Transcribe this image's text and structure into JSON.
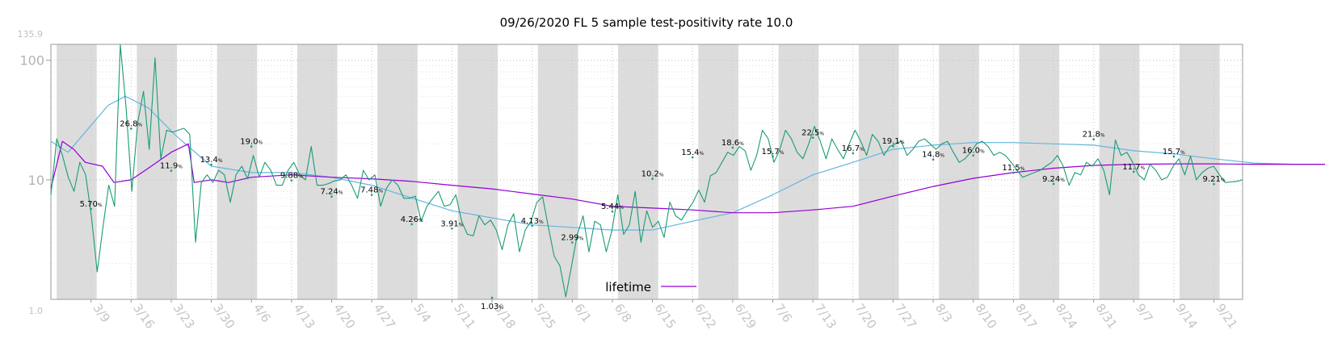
{
  "chart_data": {
    "type": "line",
    "title": "09/26/2020 FL 5 sample test-positivity rate 10.0",
    "yscale": "log",
    "ylim": [
      1.0,
      135.9
    ],
    "y_range_labels": {
      "min": "1.0",
      "max": "135.9"
    },
    "y_ticks": [
      {
        "value": 10,
        "label": "10"
      },
      {
        "value": 100,
        "label": "100"
      }
    ],
    "x_start": "2020-03-02",
    "x_end": "2020-09-26",
    "x_ticks": [
      "3/9",
      "3/16",
      "3/23",
      "3/30",
      "4/6",
      "4/13",
      "4/20",
      "4/27",
      "5/4",
      "5/11",
      "5/18",
      "5/25",
      "6/1",
      "6/8",
      "6/15",
      "6/22",
      "6/29",
      "7/6",
      "7/13",
      "7/20",
      "7/27",
      "8/3",
      "8/10",
      "8/17",
      "8/24",
      "8/31",
      "9/7",
      "9/14",
      "9/21"
    ],
    "shaded_weeks": [
      "3/3",
      "3/17",
      "3/31",
      "4/14",
      "4/28",
      "5/12",
      "5/26",
      "6/9",
      "6/23",
      "7/7",
      "7/21",
      "8/4",
      "8/18",
      "9/1",
      "9/15"
    ],
    "grid": true,
    "legend": {
      "placement": "bottom-center"
    },
    "series": [
      {
        "name": "",
        "role": "daily",
        "color": "#1a9b75",
        "values": [
          7.5,
          22,
          16,
          10.5,
          8,
          14,
          11,
          5,
          1.7,
          4,
          9,
          6,
          135,
          40,
          8,
          30,
          55,
          18,
          105,
          15,
          26,
          25,
          26,
          27,
          24,
          3,
          9.5,
          11,
          9.5,
          12,
          11,
          6.5,
          11,
          13,
          10.2,
          16,
          10.5,
          14,
          12,
          9,
          9,
          12,
          14,
          11,
          10,
          19,
          9,
          9,
          9.3,
          9.8,
          10,
          11,
          9,
          7,
          12,
          10,
          11,
          6,
          8.5,
          10,
          9,
          7,
          7,
          7.3,
          4.5,
          6,
          7,
          8,
          6,
          6.2,
          7.5,
          4.5,
          3.5,
          3.4,
          5,
          4.2,
          4.6,
          3.8,
          2.6,
          4.2,
          5.2,
          2.5,
          3.8,
          4.5,
          6.5,
          7.2,
          4,
          2.3,
          1.9,
          1.05,
          1.9,
          3.5,
          5,
          2.5,
          4.5,
          4.2,
          2.5,
          3.8,
          7.5,
          3.5,
          4.2,
          8,
          3,
          5.5,
          4,
          4.5,
          3.3,
          6.5,
          5,
          4.6,
          5.5,
          6.5,
          8.2,
          6.5,
          10.8,
          11.5,
          14,
          17,
          16,
          19,
          17.5,
          12,
          16,
          26,
          22,
          14,
          18,
          26,
          22,
          17,
          15,
          20,
          28,
          21,
          15,
          22,
          18,
          15,
          20,
          26,
          21,
          16,
          24,
          21,
          16,
          19,
          20,
          21,
          16,
          18,
          21,
          22,
          20,
          18,
          20,
          21,
          17,
          14,
          15,
          17,
          20,
          21,
          19,
          16,
          17,
          16,
          14,
          12,
          10.5,
          11,
          11.5,
          12,
          13,
          14,
          16,
          13,
          9,
          11.5,
          11,
          14,
          13,
          15,
          12,
          7.5,
          21.5,
          16,
          17,
          14,
          11,
          10,
          13.5,
          12,
          10,
          10.5,
          13,
          15,
          11,
          15.8,
          10,
          11.5,
          12.5,
          13,
          11,
          9.5,
          9.6,
          9.7,
          10
        ]
      },
      {
        "name": "",
        "role": "weekly-average",
        "color": "#63b6e0",
        "values": [
          [
            0,
            21
          ],
          [
            3,
            17
          ],
          [
            10,
            42
          ],
          [
            13,
            50
          ],
          [
            17,
            40
          ],
          [
            22,
            23
          ],
          [
            28,
            13
          ],
          [
            35,
            11.5
          ],
          [
            42,
            11.5
          ],
          [
            49,
            10.5
          ],
          [
            56,
            9
          ],
          [
            70,
            5.5
          ],
          [
            84,
            4.2
          ],
          [
            98,
            3.8
          ],
          [
            105,
            3.8
          ],
          [
            112,
            4.5
          ],
          [
            119,
            5.3
          ],
          [
            126,
            7.5
          ],
          [
            133,
            11
          ],
          [
            140,
            14
          ],
          [
            147,
            18
          ],
          [
            154,
            19.5
          ],
          [
            161,
            20.5
          ],
          [
            168,
            20.5
          ],
          [
            175,
            20
          ],
          [
            182,
            19.5
          ],
          [
            189,
            17.5
          ],
          [
            196,
            16.5
          ],
          [
            203,
            15
          ],
          [
            210,
            13.8
          ],
          [
            217,
            13.5
          ],
          [
            224,
            13.5
          ],
          [
            231,
            13
          ],
          [
            238,
            12
          ],
          [
            245,
            11.5
          ],
          [
            248,
            10
          ]
        ]
      },
      {
        "name": "lifetime",
        "role": "cumulative",
        "color": "#9400d3",
        "values": [
          [
            0,
            8.5
          ],
          [
            2,
            21
          ],
          [
            4,
            18
          ],
          [
            6,
            14
          ],
          [
            9,
            13
          ],
          [
            11,
            9.5
          ],
          [
            14,
            10
          ],
          [
            17,
            12.5
          ],
          [
            21,
            17
          ],
          [
            24,
            20
          ],
          [
            25,
            9.5
          ],
          [
            28,
            10
          ],
          [
            31,
            9.5
          ],
          [
            35,
            10.5
          ],
          [
            42,
            11
          ],
          [
            49,
            10.5
          ],
          [
            56,
            10.2
          ],
          [
            63,
            9.7
          ],
          [
            70,
            9
          ],
          [
            77,
            8.4
          ],
          [
            84,
            7.6
          ],
          [
            91,
            6.9
          ],
          [
            98,
            6
          ],
          [
            105,
            5.8
          ],
          [
            112,
            5.6
          ],
          [
            119,
            5.3
          ],
          [
            126,
            5.3
          ],
          [
            133,
            5.6
          ],
          [
            140,
            6
          ],
          [
            147,
            7.3
          ],
          [
            154,
            8.8
          ],
          [
            161,
            10.3
          ],
          [
            168,
            11.5
          ],
          [
            175,
            12.5
          ],
          [
            182,
            13.2
          ],
          [
            189,
            13.5
          ],
          [
            196,
            13.6
          ],
          [
            203,
            13.6
          ],
          [
            210,
            13.5
          ],
          [
            217,
            13.5
          ],
          [
            224,
            13.5
          ],
          [
            231,
            13.5
          ],
          [
            238,
            13.5
          ],
          [
            245,
            13.5
          ],
          [
            248,
            13.5
          ]
        ]
      }
    ],
    "annotations": [
      {
        "day": 7,
        "value": 5.7,
        "text": "5.70",
        "unit": "%"
      },
      {
        "day": 14,
        "value": 26.8,
        "text": "26.8",
        "unit": "%"
      },
      {
        "day": 21,
        "value": 11.9,
        "text": "11.9",
        "unit": "%"
      },
      {
        "day": 28,
        "value": 13.4,
        "text": "13.4",
        "unit": "%"
      },
      {
        "day": 35,
        "value": 19.0,
        "text": "19.0",
        "unit": "%"
      },
      {
        "day": 42,
        "value": 9.88,
        "text": "9.88",
        "unit": "%"
      },
      {
        "day": 49,
        "value": 7.24,
        "text": "7.24",
        "unit": "%"
      },
      {
        "day": 56,
        "value": 7.48,
        "text": "7.48",
        "unit": "%"
      },
      {
        "day": 63,
        "value": 4.26,
        "text": "4.26",
        "unit": "%"
      },
      {
        "day": 70,
        "value": 3.91,
        "text": "3.91",
        "unit": "%"
      },
      {
        "day": 77,
        "value": 1.03,
        "text": "1.03",
        "unit": "%"
      },
      {
        "day": 84,
        "value": 4.13,
        "text": "4.13",
        "unit": "%"
      },
      {
        "day": 91,
        "value": 2.99,
        "text": "2.99",
        "unit": "%"
      },
      {
        "day": 98,
        "value": 5.44,
        "text": "5.44",
        "unit": "%"
      },
      {
        "day": 105,
        "value": 10.2,
        "text": "10.2",
        "unit": "%"
      },
      {
        "day": 112,
        "value": 15.4,
        "text": "15.4",
        "unit": "%"
      },
      {
        "day": 119,
        "value": 18.6,
        "text": "18.6",
        "unit": "%"
      },
      {
        "day": 126,
        "value": 15.7,
        "text": "15.7",
        "unit": "%"
      },
      {
        "day": 133,
        "value": 22.5,
        "text": "22.5",
        "unit": "%"
      },
      {
        "day": 140,
        "value": 16.7,
        "text": "16.7",
        "unit": "%"
      },
      {
        "day": 147,
        "value": 19.1,
        "text": "19.1",
        "unit": "%"
      },
      {
        "day": 154,
        "value": 14.8,
        "text": "14.8",
        "unit": "%"
      },
      {
        "day": 161,
        "value": 16.0,
        "text": "16.0",
        "unit": "%"
      },
      {
        "day": 168,
        "value": 11.5,
        "text": "11.5",
        "unit": "%"
      },
      {
        "day": 175,
        "value": 9.24,
        "text": "9.24",
        "unit": "%"
      },
      {
        "day": 182,
        "value": 21.8,
        "text": "21.8",
        "unit": "%"
      },
      {
        "day": 189,
        "value": 11.7,
        "text": "11.7",
        "unit": "%"
      },
      {
        "day": 196,
        "value": 15.7,
        "text": "15.7",
        "unit": "%"
      },
      {
        "day": 203,
        "value": 9.21,
        "text": "9.21",
        "unit": "%"
      }
    ]
  }
}
